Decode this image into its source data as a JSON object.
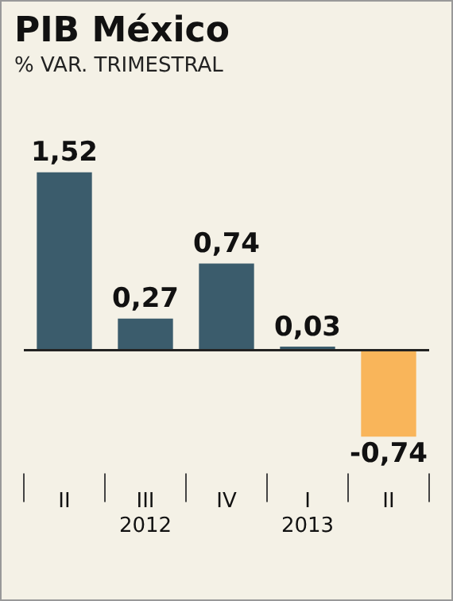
{
  "chart_data": {
    "type": "bar",
    "title": "PIB México",
    "subtitle": "% VAR. TRIMESTRAL",
    "categories": [
      "II",
      "III\n2012",
      "IV",
      "I\n2013",
      "II"
    ],
    "values": [
      1.52,
      0.27,
      0.74,
      0.03,
      -0.74
    ],
    "colors": [
      "#3b5c6c",
      "#3b5c6c",
      "#3b5c6c",
      "#3b5c6c",
      "#f9b55a"
    ],
    "value_labels": [
      "1,52",
      "0,27",
      "0,74",
      "0,03",
      "-0,74"
    ],
    "grid": false,
    "legend": false
  }
}
